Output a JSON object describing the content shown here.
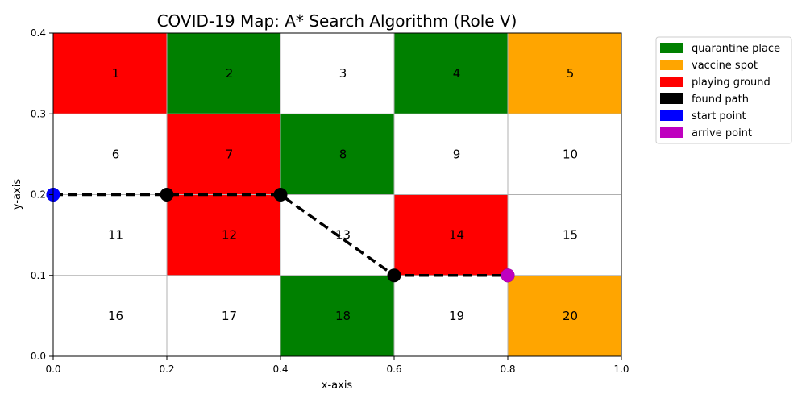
{
  "chart_data": {
    "type": "heatmap",
    "title": "COVID-19 Map: A* Search Algorithm (Role V)",
    "xlabel": "x-axis",
    "ylabel": "y-axis",
    "xlim": [
      0.0,
      1.0
    ],
    "ylim": [
      0.0,
      0.4
    ],
    "x_ticks": [
      "0.0",
      "0.2",
      "0.4",
      "0.6",
      "0.8",
      "1.0"
    ],
    "y_ticks": [
      "0.0",
      "0.1",
      "0.2",
      "0.3",
      "0.4"
    ],
    "grid": true,
    "legend_position": "outside-top-right",
    "cell_width": 0.2,
    "cell_height": 0.1,
    "legend": [
      {
        "label": "quarantine place",
        "color": "#008000"
      },
      {
        "label": "vaccine spot",
        "color": "#ffa500"
      },
      {
        "label": "playing ground",
        "color": "#ff0000"
      },
      {
        "label": "found path",
        "color": "#000000"
      },
      {
        "label": "start point",
        "color": "#0000ff"
      },
      {
        "label": "arrive point",
        "color": "#bf00bf"
      }
    ],
    "cells": [
      {
        "label": "1",
        "x0": 0.0,
        "y0": 0.3,
        "color": "#ff0000"
      },
      {
        "label": "2",
        "x0": 0.2,
        "y0": 0.3,
        "color": "#008000"
      },
      {
        "label": "3",
        "x0": 0.4,
        "y0": 0.3,
        "color": "#ffffff"
      },
      {
        "label": "4",
        "x0": 0.6,
        "y0": 0.3,
        "color": "#008000"
      },
      {
        "label": "5",
        "x0": 0.8,
        "y0": 0.3,
        "color": "#ffa500"
      },
      {
        "label": "6",
        "x0": 0.0,
        "y0": 0.2,
        "color": "#ffffff"
      },
      {
        "label": "7",
        "x0": 0.2,
        "y0": 0.2,
        "color": "#ff0000"
      },
      {
        "label": "8",
        "x0": 0.4,
        "y0": 0.2,
        "color": "#008000"
      },
      {
        "label": "9",
        "x0": 0.6,
        "y0": 0.2,
        "color": "#ffffff"
      },
      {
        "label": "10",
        "x0": 0.8,
        "y0": 0.2,
        "color": "#ffffff"
      },
      {
        "label": "11",
        "x0": 0.0,
        "y0": 0.1,
        "color": "#ffffff"
      },
      {
        "label": "12",
        "x0": 0.2,
        "y0": 0.1,
        "color": "#ff0000"
      },
      {
        "label": "13",
        "x0": 0.4,
        "y0": 0.1,
        "color": "#ffffff"
      },
      {
        "label": "14",
        "x0": 0.6,
        "y0": 0.1,
        "color": "#ff0000"
      },
      {
        "label": "15",
        "x0": 0.8,
        "y0": 0.1,
        "color": "#ffffff"
      },
      {
        "label": "16",
        "x0": 0.0,
        "y0": 0.0,
        "color": "#ffffff"
      },
      {
        "label": "17",
        "x0": 0.2,
        "y0": 0.0,
        "color": "#ffffff"
      },
      {
        "label": "18",
        "x0": 0.4,
        "y0": 0.0,
        "color": "#008000"
      },
      {
        "label": "19",
        "x0": 0.6,
        "y0": 0.0,
        "color": "#ffffff"
      },
      {
        "label": "20",
        "x0": 0.8,
        "y0": 0.0,
        "color": "#ffa500"
      }
    ],
    "path": {
      "color": "#000000",
      "points": [
        {
          "x": 0.0,
          "y": 0.2
        },
        {
          "x": 0.2,
          "y": 0.2
        },
        {
          "x": 0.4,
          "y": 0.2
        },
        {
          "x": 0.6,
          "y": 0.1
        },
        {
          "x": 0.8,
          "y": 0.1
        }
      ]
    },
    "start_point": {
      "x": 0.0,
      "y": 0.2,
      "color": "#0000ff"
    },
    "arrive_point": {
      "x": 0.8,
      "y": 0.1,
      "color": "#bf00bf"
    }
  }
}
